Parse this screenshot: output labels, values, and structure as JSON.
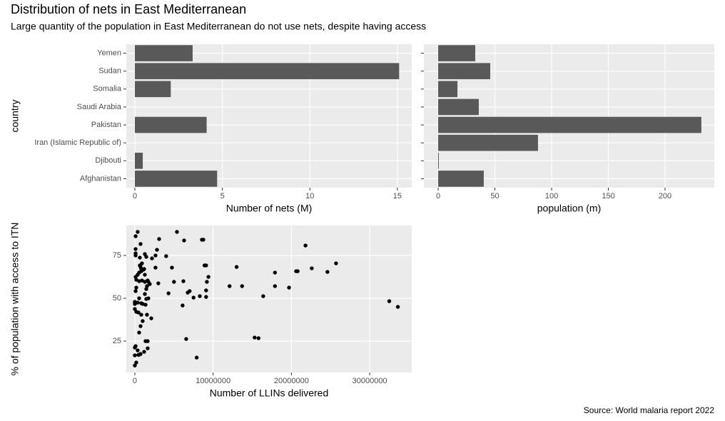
{
  "title": "Distribution of nets in East Mediterranean",
  "subtitle": "Large quantity of the population in East Mediterranean do not use nets, despite having access",
  "caption": "Source: World malaria report 2022",
  "chart_data": [
    {
      "type": "bar",
      "horizontal": true,
      "y_label": "country",
      "x_label": "Number of nets (M)",
      "categories": [
        "Yemen",
        "Sudan",
        "Somalia",
        "Saudi Arabia",
        "Pakistan",
        "Iran (Islamic Republic of)",
        "Djibouti",
        "Afghanistan"
      ],
      "values": [
        3.3,
        15.1,
        2.05,
        0,
        4.1,
        0,
        0.45,
        4.7
      ],
      "color": "#595959",
      "xlim": [
        -0.49,
        15.82
      ],
      "xticks": [
        0,
        5,
        10,
        15
      ],
      "grid": true
    },
    {
      "type": "bar",
      "horizontal": true,
      "x_label": "population (m)",
      "values": [
        32.7,
        45.9,
        17,
        35.8,
        232,
        88,
        0.6,
        40.2
      ],
      "color": "#595959",
      "xlim": [
        -12.6,
        243.4
      ],
      "xticks": [
        0,
        50,
        100,
        150,
        200
      ],
      "grid": true
    },
    {
      "type": "scatter",
      "x_label": "Number of LLINs delivered",
      "y_label": "% of population with access to ITN",
      "color": "#000000",
      "x": [
        360000,
        100000,
        730000,
        100000,
        100000,
        100000,
        1280000,
        1460000,
        640000,
        2190000,
        2640000,
        2830000,
        3100000,
        4000000,
        4740000,
        5380000,
        6290000,
        8570000,
        8750000,
        9100000,
        8900000,
        9400000,
        9200000,
        9100000,
        9100000,
        8300000,
        7500000,
        7000000,
        6750000,
        6200000,
        6100000,
        5000000,
        4300000,
        2640000,
        3000000,
        2100000,
        1640000,
        1370000,
        1640000,
        1190000,
        730000,
        360000,
        550000,
        100000,
        0,
        0,
        180000,
        0,
        460000,
        550000,
        730000,
        1000000,
        1550000,
        820000,
        460000,
        0,
        180000,
        0,
        360000,
        0,
        820000,
        1000000,
        550000,
        1460000,
        1730000,
        1370000,
        100000,
        180000,
        1280000,
        1460000,
        1910000,
        1640000,
        1280000,
        910000,
        550000,
        180000,
        100000,
        360000,
        550000,
        820000,
        1190000,
        730000,
        640000,
        910000,
        1090000,
        1280000,
        1550000,
        1730000,
        820000,
        13000000,
        12100000,
        13700000,
        16400000,
        15300000,
        15800000,
        17900000,
        17900000,
        19700000,
        20600000,
        20800000,
        21800000,
        22600000,
        24600000,
        25700000,
        32500000,
        33600000,
        6560000,
        7900000
      ],
      "values": [
        88.75,
        86.25,
        81.7,
        78.75,
        76.25,
        75,
        75.8,
        74.2,
        73.75,
        73.3,
        75,
        78.3,
        84.6,
        74.6,
        67.9,
        88.75,
        83.75,
        84.2,
        84.2,
        69.2,
        69.2,
        62.5,
        59.6,
        54.6,
        50.8,
        51.25,
        50.4,
        54.2,
        53.3,
        60,
        45.8,
        59.6,
        52.9,
        67.9,
        58.75,
        38.3,
        25,
        25,
        20.8,
        18.75,
        17.5,
        19.6,
        17.1,
        22.1,
        21.25,
        16.7,
        12.5,
        10.8,
        17,
        30,
        33.75,
        36.7,
        40.4,
        40.4,
        41.7,
        43.75,
        42.1,
        46.7,
        47.5,
        47.9,
        47.1,
        46.7,
        50,
        49.6,
        50,
        46.25,
        54.2,
        56.25,
        52.5,
        55.4,
        58.3,
        60.4,
        59.6,
        60.4,
        60,
        60.8,
        62.5,
        63.75,
        65,
        65.8,
        67.1,
        68.3,
        69.2,
        70.4,
        66.7,
        63.75,
        57.1,
        59.6,
        67.1,
        68.3,
        57.1,
        57.1,
        51.25,
        27.1,
        26.7,
        65,
        57.1,
        56.25,
        65.8,
        65.8,
        80.8,
        67.5,
        65.4,
        70.4,
        48.3,
        45,
        26.25,
        15.4
      ],
      "xlim": [
        -1090000,
        35370000
      ],
      "xticks": [
        0,
        10000000,
        20000000,
        30000000
      ],
      "ylim": [
        6.7,
        92.5
      ],
      "yticks": [
        25,
        50,
        75
      ],
      "grid": true
    }
  ]
}
